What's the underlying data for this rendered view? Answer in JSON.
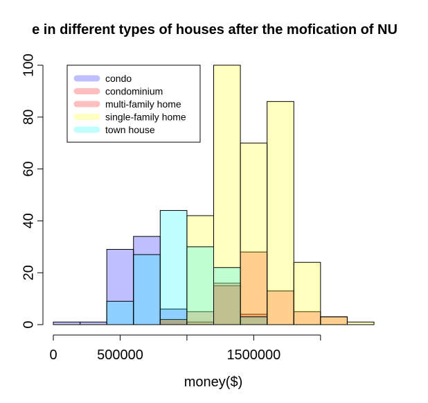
{
  "chart_data": {
    "type": "bar",
    "subtype": "overlaid-histogram",
    "title": "e in different types of houses after the mofication of NU",
    "xlabel": "money($)",
    "ylabel": "",
    "xlim": [
      0,
      2400000
    ],
    "ylim": [
      0,
      100
    ],
    "x_ticks": [
      0,
      500000,
      1000000,
      1500000,
      2000000
    ],
    "x_tick_labels": [
      "0",
      "500000",
      "",
      "1500000",
      ""
    ],
    "y_ticks": [
      0,
      20,
      40,
      60,
      80,
      100
    ],
    "y_tick_labels": [
      "0",
      "20",
      "40",
      "60",
      "80",
      "100"
    ],
    "bin_width": 200000,
    "bin_starts": [
      0,
      200000,
      400000,
      600000,
      800000,
      1000000,
      1200000,
      1400000,
      1600000,
      1800000,
      2000000,
      2200000
    ],
    "grid": false,
    "legend_position": "top-left",
    "series": [
      {
        "name": "condo",
        "color": "#0000ff",
        "alpha": 0.25,
        "values": [
          1,
          1,
          29,
          34,
          6,
          0,
          0,
          0,
          0,
          0,
          0,
          0
        ]
      },
      {
        "name": "condominium",
        "color": "#ff0000",
        "alpha": 0.25,
        "values": [
          0,
          0,
          0,
          0,
          2,
          1,
          15,
          4,
          0,
          0,
          0,
          0
        ]
      },
      {
        "name": "multi-family home",
        "color": "#ff0000",
        "alpha": 0.25,
        "values": [
          0,
          0,
          0,
          0,
          2,
          5,
          16,
          28,
          13,
          5,
          3,
          0
        ]
      },
      {
        "name": "single-family home",
        "color": "#ffff00",
        "alpha": 0.25,
        "values": [
          0,
          0,
          0,
          0,
          2,
          42,
          100,
          70,
          86,
          24,
          3,
          1
        ]
      },
      {
        "name": "town house",
        "color": "#00ffff",
        "alpha": 0.25,
        "values": [
          0,
          0,
          9,
          27,
          44,
          30,
          22,
          3,
          0,
          0,
          0,
          0
        ]
      }
    ]
  }
}
